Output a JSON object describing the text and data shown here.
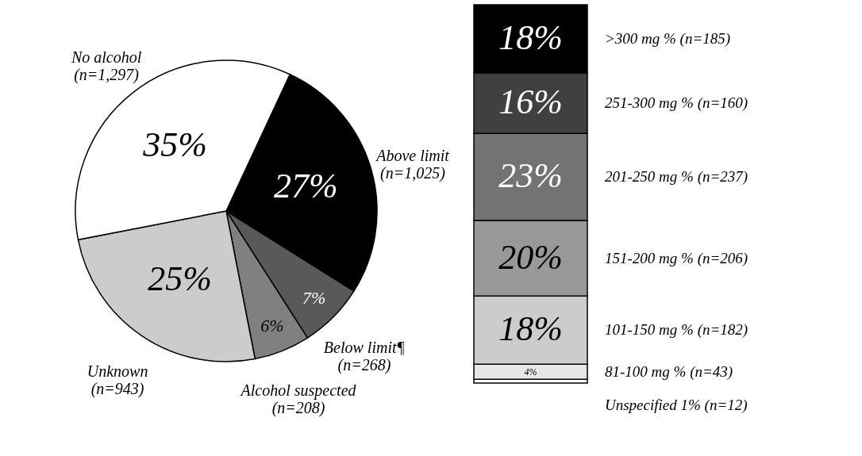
{
  "chart_data": [
    {
      "type": "pie",
      "categories": [
        "Above limit\n(n=1,025)",
        "Below limit¶\n(n=268)",
        "Alcohol suspected\n(n=208)",
        "Unknown\n(n=943)",
        "No alcohol\n(n=1,297)"
      ],
      "values": [
        27,
        7,
        6,
        25,
        35
      ],
      "colors": [
        "#000000",
        "#595959",
        "#808080",
        "#cccccc",
        "#ffffff"
      ],
      "value_labels": [
        "27%",
        "7%",
        "6%",
        "25%",
        "35%"
      ]
    },
    {
      "type": "bar",
      "stacked": true,
      "categories": [
        null
      ],
      "series": [
        {
          "name": "Unspecified 1% (n=12)",
          "color": "#ffffff",
          "values": [
            1
          ],
          "value_labels": [
            null
          ]
        },
        {
          "name": "81-100 mg % (n=43)",
          "color": "#e6e6e6",
          "values": [
            4
          ],
          "value_labels": [
            "4%"
          ]
        },
        {
          "name": "101-150 mg % (n=182)",
          "color": "#cccccc",
          "values": [
            18
          ],
          "value_labels": [
            "18%"
          ]
        },
        {
          "name": "151-200 mg % (n=206)",
          "color": "#999999",
          "values": [
            20
          ],
          "value_labels": [
            "20%"
          ]
        },
        {
          "name": "201-250 mg % (n=237)",
          "color": "#737373",
          "values": [
            23
          ],
          "value_labels": [
            "23%"
          ]
        },
        {
          "name": "251-300 mg % (n=160)",
          "color": "#404040",
          "values": [
            16
          ],
          "value_labels": [
            "16%"
          ]
        },
        {
          "name": ">300 mg % (n=185)",
          "color": "#000000",
          "values": [
            18
          ],
          "value_labels": [
            "18%"
          ]
        }
      ]
    }
  ]
}
